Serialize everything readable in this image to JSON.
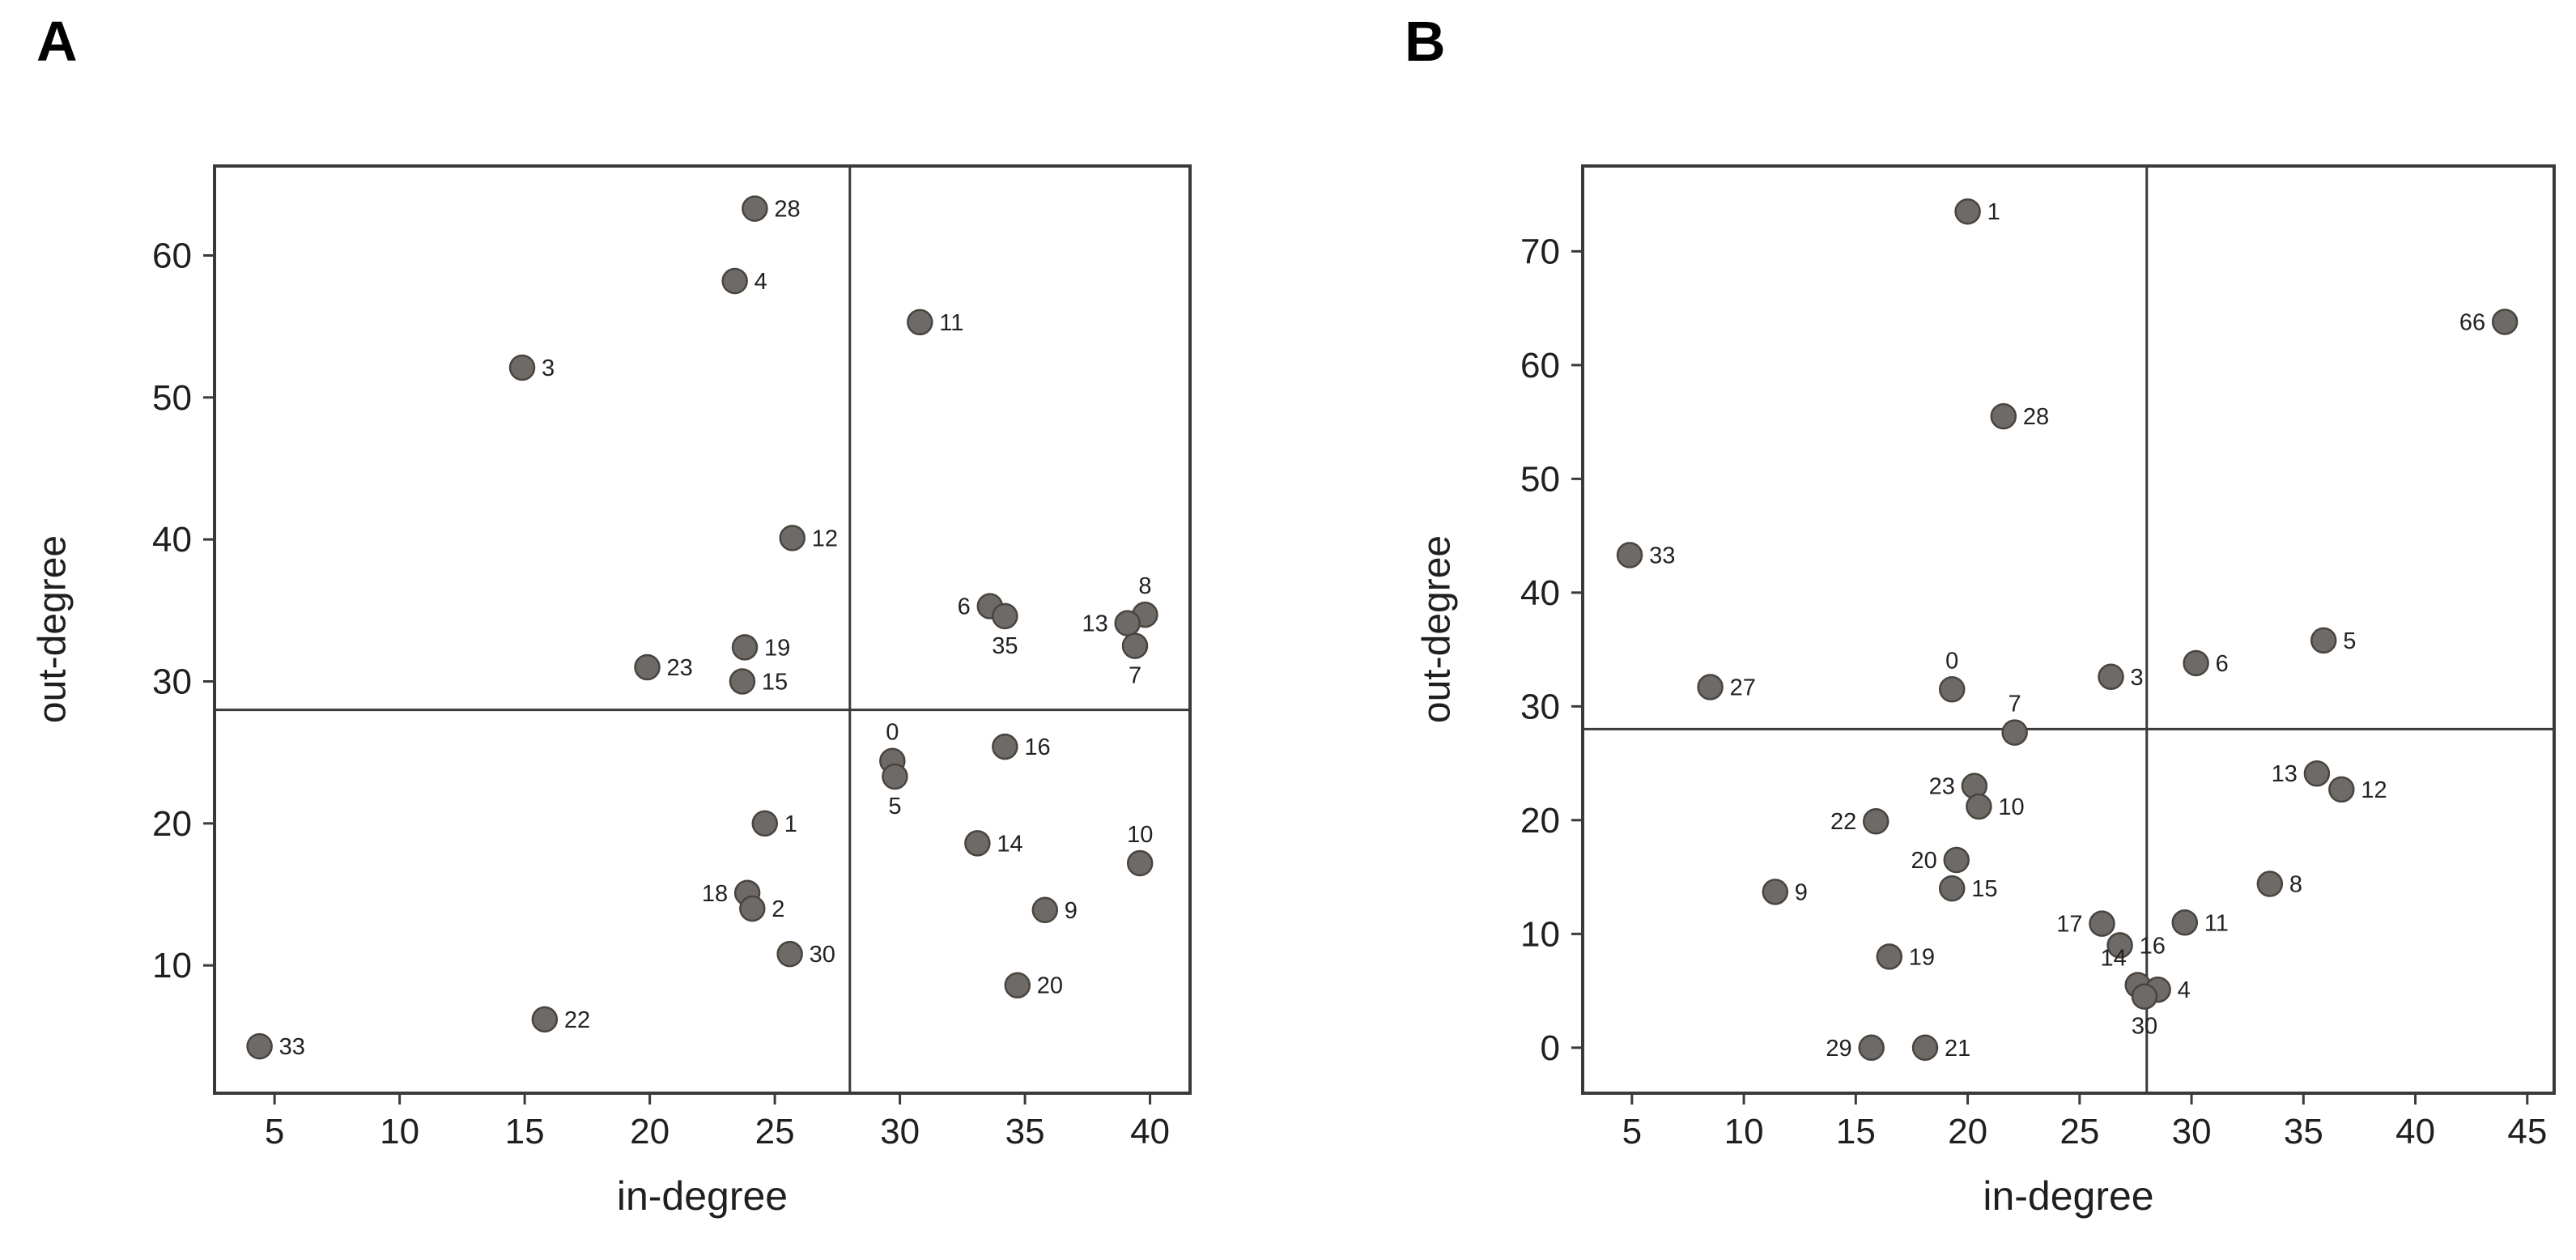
{
  "figure": {
    "panel_a_letter": "A",
    "panel_b_letter": "B"
  },
  "colors": {
    "dot_fill": "#6e6a67",
    "dot_stroke": "#4a443f",
    "axis": "#3a3a3a",
    "text": "#1f1f1f",
    "background": "#ffffff"
  },
  "chart_data": [
    {
      "type": "scatter",
      "panel": "A",
      "xlabel": "in-degree",
      "ylabel": "out-degree",
      "xlim": [
        2.6,
        41.6
      ],
      "ylim": [
        1,
        66.3
      ],
      "xticks": [
        5,
        10,
        15,
        20,
        25,
        30,
        35,
        40
      ],
      "yticks": [
        10,
        20,
        30,
        40,
        50,
        60
      ],
      "grid": false,
      "legend": "none",
      "quadrant_vline_x": 28,
      "quadrant_hline_y": 28,
      "points": [
        {
          "label": "28",
          "x": 24.2,
          "y": 63.3,
          "labelPos": "right"
        },
        {
          "label": "4",
          "x": 23.4,
          "y": 58.2,
          "labelPos": "right"
        },
        {
          "label": "11",
          "x": 30.8,
          "y": 55.3,
          "labelPos": "right"
        },
        {
          "label": "3",
          "x": 14.9,
          "y": 52.1,
          "labelPos": "right"
        },
        {
          "label": "12",
          "x": 25.7,
          "y": 40.1,
          "labelPos": "right"
        },
        {
          "label": "6",
          "x": 33.6,
          "y": 35.3,
          "labelPos": "left"
        },
        {
          "label": "35",
          "x": 34.2,
          "y": 34.6,
          "labelPos": "below"
        },
        {
          "label": "8",
          "x": 39.8,
          "y": 34.7,
          "labelPos": "above"
        },
        {
          "label": "13",
          "x": 39.1,
          "y": 34.1,
          "labelPos": "left"
        },
        {
          "label": "7",
          "x": 39.4,
          "y": 32.5,
          "labelPos": "below"
        },
        {
          "label": "19",
          "x": 23.8,
          "y": 32.4,
          "labelPos": "right"
        },
        {
          "label": "23",
          "x": 19.9,
          "y": 31.0,
          "labelPos": "right"
        },
        {
          "label": "15",
          "x": 23.7,
          "y": 30.0,
          "labelPos": "right"
        },
        {
          "label": "16",
          "x": 34.2,
          "y": 25.4,
          "labelPos": "right"
        },
        {
          "label": "0",
          "x": 29.7,
          "y": 24.4,
          "labelPos": "above"
        },
        {
          "label": "5",
          "x": 29.8,
          "y": 23.3,
          "labelPos": "below"
        },
        {
          "label": "1",
          "x": 24.6,
          "y": 20.0,
          "labelPos": "right"
        },
        {
          "label": "14",
          "x": 33.1,
          "y": 18.6,
          "labelPos": "right"
        },
        {
          "label": "10",
          "x": 39.6,
          "y": 17.2,
          "labelPos": "above"
        },
        {
          "label": "18",
          "x": 23.9,
          "y": 15.1,
          "labelPos": "left"
        },
        {
          "label": "2",
          "x": 24.1,
          "y": 14.0,
          "labelPos": "right"
        },
        {
          "label": "9",
          "x": 35.8,
          "y": 13.9,
          "labelPos": "right"
        },
        {
          "label": "30",
          "x": 25.6,
          "y": 10.8,
          "labelPos": "right"
        },
        {
          "label": "20",
          "x": 34.7,
          "y": 8.6,
          "labelPos": "right"
        },
        {
          "label": "22",
          "x": 15.8,
          "y": 6.2,
          "labelPos": "right"
        },
        {
          "label": "33",
          "x": 4.4,
          "y": 4.3,
          "labelPos": "right"
        }
      ]
    },
    {
      "type": "scatter",
      "panel": "B",
      "xlabel": "in-degree",
      "ylabel": "out-degree",
      "xlim": [
        2.8,
        46.2
      ],
      "ylim": [
        -4,
        77.5
      ],
      "xticks": [
        5,
        10,
        15,
        20,
        25,
        30,
        35,
        40,
        45
      ],
      "yticks": [
        0,
        10,
        20,
        30,
        40,
        50,
        60,
        70
      ],
      "grid": false,
      "legend": "none",
      "quadrant_vline_x": 28,
      "quadrant_hline_y": 28,
      "points": [
        {
          "label": "1",
          "x": 20.0,
          "y": 73.5,
          "labelPos": "right"
        },
        {
          "label": "66",
          "x": 44.0,
          "y": 63.8,
          "labelPos": "left"
        },
        {
          "label": "28",
          "x": 21.6,
          "y": 55.5,
          "labelPos": "right"
        },
        {
          "label": "33",
          "x": 4.9,
          "y": 43.3,
          "labelPos": "right"
        },
        {
          "label": "5",
          "x": 35.9,
          "y": 35.8,
          "labelPos": "right"
        },
        {
          "label": "6",
          "x": 30.2,
          "y": 33.8,
          "labelPos": "right"
        },
        {
          "label": "3",
          "x": 26.4,
          "y": 32.6,
          "labelPos": "right"
        },
        {
          "label": "27",
          "x": 8.5,
          "y": 31.7,
          "labelPos": "right"
        },
        {
          "label": "0",
          "x": 19.3,
          "y": 31.5,
          "labelPos": "above"
        },
        {
          "label": "7",
          "x": 22.1,
          "y": 27.7,
          "labelPos": "above"
        },
        {
          "label": "13",
          "x": 35.6,
          "y": 24.1,
          "labelPos": "left"
        },
        {
          "label": "23",
          "x": 20.3,
          "y": 23.0,
          "labelPos": "left"
        },
        {
          "label": "12",
          "x": 36.7,
          "y": 22.7,
          "labelPos": "right"
        },
        {
          "label": "10",
          "x": 20.5,
          "y": 21.2,
          "labelPos": "right"
        },
        {
          "label": "22",
          "x": 15.9,
          "y": 19.9,
          "labelPos": "left"
        },
        {
          "label": "20",
          "x": 19.5,
          "y": 16.5,
          "labelPos": "left"
        },
        {
          "label": "8",
          "x": 33.5,
          "y": 14.4,
          "labelPos": "right"
        },
        {
          "label": "15",
          "x": 19.3,
          "y": 14.0,
          "labelPos": "right"
        },
        {
          "label": "9",
          "x": 11.4,
          "y": 13.7,
          "labelPos": "right"
        },
        {
          "label": "11",
          "x": 29.7,
          "y": 11.0,
          "labelPos": "right"
        },
        {
          "label": "17",
          "x": 26.0,
          "y": 10.9,
          "labelPos": "left"
        },
        {
          "label": "16",
          "x": 26.8,
          "y": 9.0,
          "labelPos": "right"
        },
        {
          "label": "19",
          "x": 16.5,
          "y": 8.0,
          "labelPos": "right"
        },
        {
          "label": "14",
          "x": 27.6,
          "y": 5.5,
          "labelPos": "above-left"
        },
        {
          "label": "4",
          "x": 28.5,
          "y": 5.1,
          "labelPos": "right"
        },
        {
          "label": "30",
          "x": 27.9,
          "y": 4.5,
          "labelPos": "below"
        },
        {
          "label": "29",
          "x": 15.7,
          "y": 0,
          "labelPos": "left"
        },
        {
          "label": "21",
          "x": 18.1,
          "y": 0,
          "labelPos": "right"
        }
      ]
    }
  ]
}
